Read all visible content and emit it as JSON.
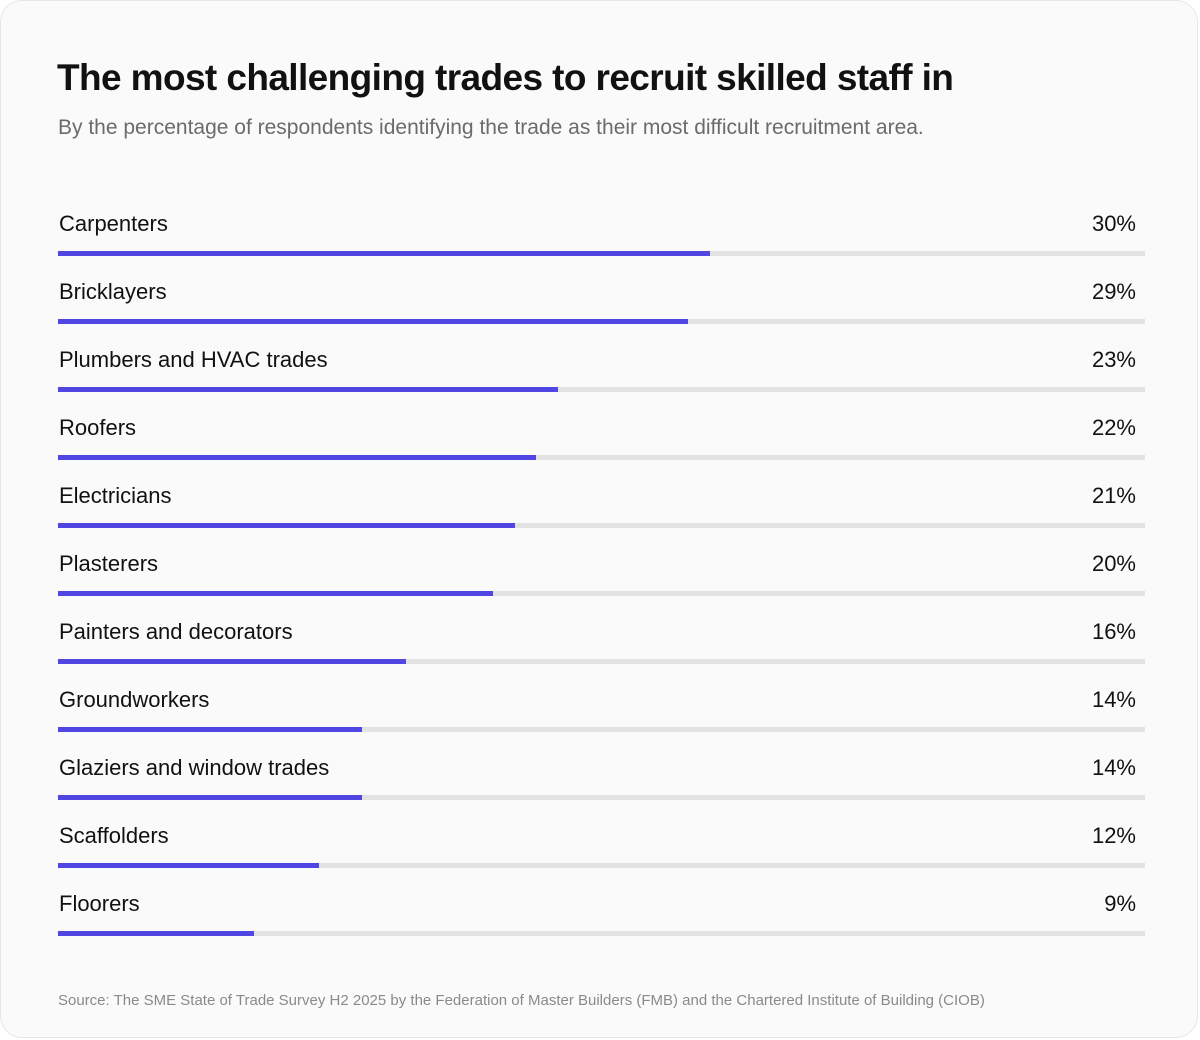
{
  "colors": {
    "bar": "#5046e4",
    "track": "#e2e2e2",
    "background": "#fafafa"
  },
  "chart_data": {
    "type": "bar",
    "orientation": "horizontal",
    "title": "The most challenging trades to recruit skilled staff in",
    "subtitle": "By the percentage of respondents identifying the trade as their most difficult recruitment area.",
    "unit": "%",
    "scale_max": 50,
    "categories": [
      "Carpenters",
      "Bricklayers",
      "Plumbers and HVAC trades",
      "Roofers",
      "Electricians",
      "Plasterers",
      "Painters and decorators",
      "Groundworkers",
      "Glaziers and window trades",
      "Scaffolders",
      "Floorers"
    ],
    "values": [
      30,
      29,
      23,
      22,
      21,
      20,
      16,
      14,
      14,
      12,
      9
    ],
    "value_labels": [
      "30%",
      "29%",
      "23%",
      "22%",
      "21%",
      "20%",
      "16%",
      "14%",
      "14%",
      "12%",
      "9%"
    ],
    "source": "Source: The SME State of Trade Survey H2 2025 by the Federation of Master Builders (FMB) and the Chartered Institute of Building (CIOB)"
  }
}
